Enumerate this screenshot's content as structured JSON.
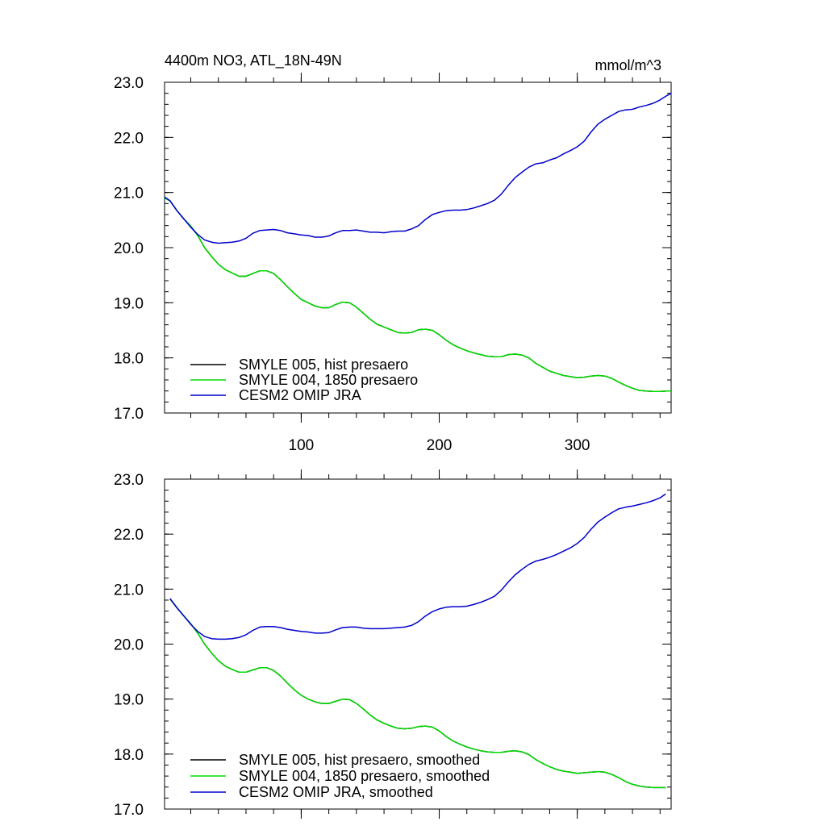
{
  "figure": {
    "title_left": "4400m NO3, ATL_18N-49N",
    "title_right": "mmol/m^3"
  },
  "chart_data": [
    {
      "type": "line",
      "panel": "top",
      "title": "4400m NO3, ATL_18N-49N",
      "units": "mmol/m^3",
      "xlim": [
        1,
        368
      ],
      "ylim": [
        17.0,
        23.0
      ],
      "xticks": [
        100,
        200,
        300
      ],
      "xtick_labels": [
        "100",
        "200",
        "300"
      ],
      "yticks": [
        17.0,
        18.0,
        19.0,
        20.0,
        21.0,
        22.0,
        23.0
      ],
      "ytick_labels": [
        "17.0",
        "18.0",
        "19.0",
        "20.0",
        "21.0",
        "22.0",
        "23.0"
      ],
      "legend_position": "bottom-left",
      "series": [
        {
          "name": "SMYLE 005, hist presaero",
          "color": "#000000",
          "x": [
            1,
            5,
            10,
            15,
            20,
            25,
            30,
            35,
            40,
            45,
            50,
            55,
            60,
            65,
            70,
            75,
            80,
            85,
            90,
            95,
            100,
            105,
            110,
            115,
            120,
            125,
            130,
            135,
            140,
            145,
            150,
            155,
            160,
            165,
            170,
            175,
            180,
            185,
            190,
            195,
            200,
            205,
            210,
            215,
            220,
            225,
            230,
            235,
            240,
            245,
            250,
            255,
            260,
            265,
            270,
            275,
            280,
            285,
            290,
            295,
            300,
            305,
            310,
            315,
            320,
            325,
            330,
            335,
            340,
            345,
            350,
            355,
            360,
            365,
            368
          ],
          "values": [
            20.9,
            20.85,
            20.67,
            20.52,
            20.39,
            20.22,
            20.0,
            19.84,
            19.7,
            19.6,
            19.54,
            19.48,
            19.48,
            19.53,
            19.58,
            19.58,
            19.53,
            19.42,
            19.29,
            19.17,
            19.06,
            19.0,
            18.94,
            18.91,
            18.91,
            18.97,
            19.01,
            19.0,
            18.92,
            18.81,
            18.7,
            18.61,
            18.56,
            18.51,
            18.46,
            18.45,
            18.46,
            18.51,
            18.52,
            18.5,
            18.42,
            18.32,
            18.24,
            18.18,
            18.13,
            18.09,
            18.06,
            18.03,
            18.02,
            18.02,
            18.06,
            18.07,
            18.05,
            18.0,
            17.9,
            17.83,
            17.76,
            17.72,
            17.68,
            17.66,
            17.64,
            17.65,
            17.67,
            17.68,
            17.67,
            17.63,
            17.56,
            17.5,
            17.45,
            17.41,
            17.4,
            17.39,
            17.39,
            17.4,
            17.4
          ]
        },
        {
          "name": "SMYLE 004, 1850 presaero",
          "color": "#00dd00",
          "x": [
            1,
            5,
            10,
            15,
            20,
            25,
            30,
            35,
            40,
            45,
            50,
            55,
            60,
            65,
            70,
            75,
            80,
            85,
            90,
            95,
            100,
            105,
            110,
            115,
            120,
            125,
            130,
            135,
            140,
            145,
            150,
            155,
            160,
            165,
            170,
            175,
            180,
            185,
            190,
            195,
            200,
            205,
            210,
            215,
            220,
            225,
            230,
            235,
            240,
            245,
            250,
            255,
            260,
            265,
            270,
            275,
            280,
            285,
            290,
            295,
            300,
            305,
            310,
            315,
            320,
            325,
            330,
            335,
            340,
            345,
            350,
            355,
            360,
            365,
            368
          ],
          "values": [
            20.9,
            20.85,
            20.67,
            20.52,
            20.39,
            20.22,
            20.0,
            19.84,
            19.7,
            19.6,
            19.54,
            19.48,
            19.48,
            19.53,
            19.58,
            19.58,
            19.53,
            19.42,
            19.29,
            19.17,
            19.06,
            19.0,
            18.94,
            18.91,
            18.91,
            18.97,
            19.01,
            19.0,
            18.92,
            18.81,
            18.7,
            18.61,
            18.56,
            18.51,
            18.46,
            18.45,
            18.46,
            18.51,
            18.52,
            18.5,
            18.42,
            18.32,
            18.24,
            18.18,
            18.13,
            18.09,
            18.06,
            18.03,
            18.02,
            18.02,
            18.06,
            18.07,
            18.05,
            18.0,
            17.9,
            17.83,
            17.76,
            17.72,
            17.68,
            17.66,
            17.64,
            17.65,
            17.67,
            17.68,
            17.67,
            17.63,
            17.56,
            17.5,
            17.45,
            17.41,
            17.4,
            17.39,
            17.39,
            17.4,
            17.4
          ]
        },
        {
          "name": "CESM2 OMIP JRA",
          "color": "#0000cc",
          "x": [
            1,
            5,
            10,
            15,
            20,
            25,
            30,
            35,
            40,
            45,
            50,
            55,
            60,
            65,
            70,
            75,
            80,
            85,
            90,
            95,
            100,
            105,
            110,
            115,
            120,
            125,
            130,
            135,
            140,
            145,
            150,
            155,
            160,
            165,
            170,
            175,
            180,
            185,
            190,
            195,
            200,
            205,
            210,
            215,
            220,
            225,
            230,
            235,
            240,
            245,
            250,
            255,
            260,
            265,
            270,
            275,
            280,
            285,
            290,
            295,
            300,
            305,
            310,
            315,
            320,
            325,
            330,
            335,
            340,
            345,
            350,
            355,
            360,
            365,
            368
          ],
          "values": [
            20.92,
            20.85,
            20.67,
            20.52,
            20.37,
            20.24,
            20.14,
            20.1,
            20.08,
            20.09,
            20.1,
            20.12,
            20.17,
            20.26,
            20.31,
            20.32,
            20.33,
            20.31,
            20.27,
            20.25,
            20.23,
            20.22,
            20.19,
            20.19,
            20.21,
            20.27,
            20.31,
            20.31,
            20.32,
            20.3,
            20.28,
            20.28,
            20.27,
            20.29,
            20.3,
            20.3,
            20.34,
            20.4,
            20.51,
            20.6,
            20.64,
            20.67,
            20.68,
            20.68,
            20.69,
            20.72,
            20.76,
            20.8,
            20.86,
            20.97,
            21.13,
            21.27,
            21.37,
            21.46,
            21.52,
            21.54,
            21.59,
            21.63,
            21.7,
            21.76,
            21.83,
            21.93,
            22.1,
            22.24,
            22.33,
            22.4,
            22.47,
            22.5,
            22.51,
            22.55,
            22.58,
            22.62,
            22.68,
            22.76,
            22.8
          ]
        }
      ]
    },
    {
      "type": "line",
      "panel": "bottom",
      "xlim": [
        1,
        368
      ],
      "ylim": [
        17.0,
        23.0
      ],
      "xticks": [
        100,
        200,
        300
      ],
      "xtick_labels": [],
      "yticks": [
        17.0,
        18.0,
        19.0,
        20.0,
        21.0,
        22.0,
        23.0
      ],
      "ytick_labels": [
        "17.0",
        "18.0",
        "19.0",
        "20.0",
        "21.0",
        "22.0",
        "23.0"
      ],
      "legend_position": "bottom-left",
      "series": [
        {
          "name": "SMYLE 005, hist presaero, smoothed",
          "color": "#000000",
          "x": [
            5,
            10,
            15,
            20,
            25,
            30,
            35,
            40,
            45,
            50,
            55,
            60,
            65,
            70,
            75,
            80,
            85,
            90,
            95,
            100,
            105,
            110,
            115,
            120,
            125,
            130,
            135,
            140,
            145,
            150,
            155,
            160,
            165,
            170,
            175,
            180,
            185,
            190,
            195,
            200,
            205,
            210,
            215,
            220,
            225,
            230,
            235,
            240,
            245,
            250,
            255,
            260,
            265,
            270,
            275,
            280,
            285,
            290,
            295,
            300,
            305,
            310,
            315,
            320,
            325,
            330,
            335,
            340,
            345,
            350,
            355,
            360,
            364
          ],
          "values": [
            20.82,
            20.66,
            20.51,
            20.37,
            20.2,
            20.0,
            19.84,
            19.7,
            19.6,
            19.54,
            19.49,
            19.49,
            19.53,
            19.57,
            19.57,
            19.52,
            19.42,
            19.29,
            19.17,
            19.07,
            19.0,
            18.95,
            18.92,
            18.92,
            18.96,
            19.0,
            18.99,
            18.92,
            18.82,
            18.71,
            18.62,
            18.56,
            18.51,
            18.47,
            18.46,
            18.47,
            18.5,
            18.51,
            18.49,
            18.42,
            18.32,
            18.24,
            18.18,
            18.13,
            18.09,
            18.06,
            18.04,
            18.03,
            18.03,
            18.05,
            18.06,
            18.04,
            17.99,
            17.9,
            17.83,
            17.77,
            17.72,
            17.69,
            17.67,
            17.65,
            17.66,
            17.67,
            17.68,
            17.67,
            17.63,
            17.57,
            17.5,
            17.45,
            17.42,
            17.4,
            17.39,
            17.39,
            17.39
          ]
        },
        {
          "name": "SMYLE 004, 1850 presaero, smoothed",
          "color": "#00dd00",
          "x": [
            5,
            10,
            15,
            20,
            25,
            30,
            35,
            40,
            45,
            50,
            55,
            60,
            65,
            70,
            75,
            80,
            85,
            90,
            95,
            100,
            105,
            110,
            115,
            120,
            125,
            130,
            135,
            140,
            145,
            150,
            155,
            160,
            165,
            170,
            175,
            180,
            185,
            190,
            195,
            200,
            205,
            210,
            215,
            220,
            225,
            230,
            235,
            240,
            245,
            250,
            255,
            260,
            265,
            270,
            275,
            280,
            285,
            290,
            295,
            300,
            305,
            310,
            315,
            320,
            325,
            330,
            335,
            340,
            345,
            350,
            355,
            360,
            364
          ],
          "values": [
            20.82,
            20.66,
            20.51,
            20.37,
            20.2,
            20.0,
            19.84,
            19.7,
            19.6,
            19.54,
            19.49,
            19.49,
            19.53,
            19.57,
            19.57,
            19.52,
            19.42,
            19.29,
            19.17,
            19.07,
            19.0,
            18.95,
            18.92,
            18.92,
            18.96,
            19.0,
            18.99,
            18.92,
            18.82,
            18.71,
            18.62,
            18.56,
            18.51,
            18.47,
            18.46,
            18.47,
            18.5,
            18.51,
            18.49,
            18.42,
            18.32,
            18.24,
            18.18,
            18.13,
            18.09,
            18.06,
            18.04,
            18.03,
            18.03,
            18.05,
            18.06,
            18.04,
            17.99,
            17.9,
            17.83,
            17.77,
            17.72,
            17.69,
            17.67,
            17.65,
            17.66,
            17.67,
            17.68,
            17.67,
            17.63,
            17.57,
            17.5,
            17.45,
            17.42,
            17.4,
            17.39,
            17.39,
            17.39
          ]
        },
        {
          "name": "CESM2 OMIP JRA, smoothed",
          "color": "#0000cc",
          "x": [
            5,
            10,
            15,
            20,
            25,
            30,
            35,
            40,
            45,
            50,
            55,
            60,
            65,
            70,
            75,
            80,
            85,
            90,
            95,
            100,
            105,
            110,
            115,
            120,
            125,
            130,
            135,
            140,
            145,
            150,
            155,
            160,
            165,
            170,
            175,
            180,
            185,
            190,
            195,
            200,
            205,
            210,
            215,
            220,
            225,
            230,
            235,
            240,
            245,
            250,
            255,
            260,
            265,
            270,
            275,
            280,
            285,
            290,
            295,
            300,
            305,
            310,
            315,
            320,
            325,
            330,
            335,
            340,
            345,
            350,
            355,
            360,
            364
          ],
          "values": [
            20.83,
            20.66,
            20.51,
            20.36,
            20.23,
            20.14,
            20.1,
            20.09,
            20.09,
            20.1,
            20.12,
            20.17,
            20.25,
            20.31,
            20.32,
            20.32,
            20.3,
            20.27,
            20.25,
            20.23,
            20.22,
            20.2,
            20.2,
            20.21,
            20.26,
            20.3,
            20.31,
            20.31,
            20.29,
            20.28,
            20.28,
            20.28,
            20.29,
            20.3,
            20.31,
            20.34,
            20.41,
            20.51,
            20.59,
            20.64,
            20.67,
            20.68,
            20.68,
            20.69,
            20.72,
            20.76,
            20.81,
            20.87,
            20.98,
            21.13,
            21.26,
            21.36,
            21.45,
            21.51,
            21.54,
            21.58,
            21.63,
            21.69,
            21.75,
            21.83,
            21.94,
            22.09,
            22.22,
            22.31,
            22.39,
            22.46,
            22.49,
            22.51,
            22.54,
            22.57,
            22.61,
            22.66,
            22.73
          ]
        }
      ]
    }
  ]
}
